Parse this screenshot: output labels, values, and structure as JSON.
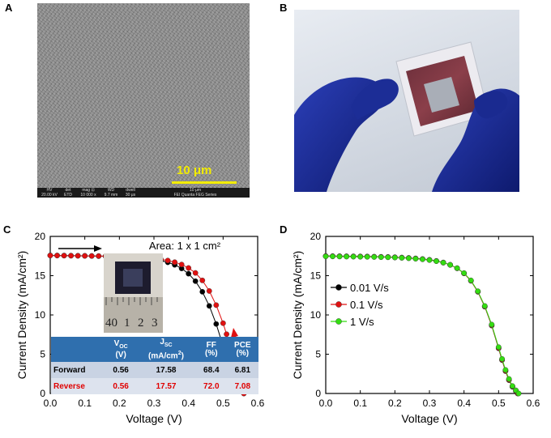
{
  "panels": {
    "a": {
      "letter": "A",
      "scale_bar": "10 μm",
      "info_bar": [
        {
          "key": "HV",
          "val": "20.00 kV"
        },
        {
          "key": "det",
          "val": "ETD"
        },
        {
          "key": "mag ⊡",
          "val": "10 000 x"
        },
        {
          "key": "WD",
          "val": "9.7 mm"
        },
        {
          "key": "dwell",
          "val": "30 μs"
        },
        {
          "key": "10 μm",
          "val": "FEI Quanta FEG Series"
        }
      ]
    },
    "b": {
      "letter": "B"
    },
    "c": {
      "letter": "C",
      "area_text": "Area: 1 x 1 cm²",
      "inset_ruler": [
        "40",
        "1",
        "2",
        "3"
      ],
      "table": {
        "headers": [
          "",
          "VOC (V)",
          "JSC (mA/cm²)",
          "FF (%)",
          "PCE (%)"
        ],
        "rows": [
          {
            "label": "Forward",
            "voc": "0.56",
            "jsc": "17.58",
            "ff": "68.4",
            "pce": "6.81"
          },
          {
            "label": "Reverse",
            "voc": "0.56",
            "jsc": "17.57",
            "ff": "72.0",
            "pce": "7.08"
          }
        ]
      }
    },
    "d": {
      "letter": "D"
    }
  },
  "colors": {
    "forward": "#000000",
    "reverse": "#e01010",
    "green": "#33dd11",
    "arrow_red": "#e01010"
  },
  "chart_data": [
    {
      "type": "line",
      "panel": "C",
      "xlabel": "Voltage (V)",
      "ylabel": "Current Density (mA/cm²)",
      "xlim": [
        0.0,
        0.6
      ],
      "ylim": [
        0,
        20
      ],
      "xticks": [
        "0.0",
        "0.1",
        "0.2",
        "0.3",
        "0.4",
        "0.5",
        "0.6"
      ],
      "yticks": [
        "0",
        "5",
        "10",
        "15",
        "20"
      ],
      "series": [
        {
          "color": "#000000",
          "x": [
            0.0,
            0.02,
            0.04,
            0.06,
            0.08,
            0.1,
            0.12,
            0.14,
            0.16,
            0.18,
            0.2,
            0.22,
            0.24,
            0.26,
            0.28,
            0.3,
            0.32,
            0.34,
            0.36,
            0.38,
            0.4,
            0.42,
            0.44,
            0.46,
            0.48,
            0.5,
            0.51,
            0.52,
            0.53,
            0.54,
            0.55,
            0.56
          ],
          "y": [
            17.58,
            17.57,
            17.56,
            17.55,
            17.54,
            17.53,
            17.51,
            17.49,
            17.47,
            17.44,
            17.41,
            17.37,
            17.32,
            17.26,
            17.18,
            17.07,
            16.92,
            16.7,
            16.38,
            15.92,
            15.25,
            14.3,
            12.95,
            11.15,
            8.85,
            6.05,
            4.55,
            3.05,
            1.75,
            0.8,
            0.3,
            0.0
          ]
        },
        {
          "color": "#e01010",
          "x": [
            0.0,
            0.02,
            0.04,
            0.06,
            0.08,
            0.1,
            0.12,
            0.14,
            0.16,
            0.18,
            0.2,
            0.22,
            0.24,
            0.26,
            0.28,
            0.3,
            0.32,
            0.34,
            0.36,
            0.38,
            0.4,
            0.42,
            0.44,
            0.46,
            0.48,
            0.5,
            0.51,
            0.52,
            0.53,
            0.54,
            0.55,
            0.56
          ],
          "y": [
            17.57,
            17.56,
            17.55,
            17.54,
            17.53,
            17.52,
            17.51,
            17.5,
            17.48,
            17.46,
            17.44,
            17.41,
            17.37,
            17.33,
            17.27,
            17.19,
            17.08,
            16.93,
            16.72,
            16.42,
            15.98,
            15.35,
            14.4,
            13.05,
            11.25,
            8.95,
            7.55,
            5.95,
            4.25,
            2.55,
            1.1,
            0.0
          ]
        }
      ]
    },
    {
      "type": "line",
      "panel": "D",
      "xlabel": "Voltage (V)",
      "ylabel": "Current Density (mA/cm²)",
      "xlim": [
        0.0,
        0.6
      ],
      "ylim": [
        0,
        20
      ],
      "xticks": [
        "0.0",
        "0.1",
        "0.2",
        "0.3",
        "0.4",
        "0.5",
        "0.6"
      ],
      "yticks": [
        "0",
        "5",
        "10",
        "15",
        "20"
      ],
      "series": [
        {
          "name": "0.01 V/s",
          "color": "#000000",
          "x": [
            0.0,
            0.02,
            0.04,
            0.06,
            0.08,
            0.1,
            0.12,
            0.14,
            0.16,
            0.18,
            0.2,
            0.22,
            0.24,
            0.26,
            0.28,
            0.3,
            0.32,
            0.34,
            0.36,
            0.38,
            0.4,
            0.42,
            0.44,
            0.46,
            0.48,
            0.5,
            0.51,
            0.52,
            0.53,
            0.54,
            0.55,
            0.555
          ],
          "y": [
            17.5,
            17.49,
            17.48,
            17.47,
            17.46,
            17.45,
            17.44,
            17.42,
            17.4,
            17.38,
            17.35,
            17.31,
            17.26,
            17.2,
            17.12,
            17.02,
            16.88,
            16.68,
            16.38,
            15.95,
            15.3,
            14.35,
            12.95,
            11.05,
            8.65,
            5.75,
            4.25,
            2.85,
            1.7,
            0.85,
            0.3,
            0.0
          ]
        },
        {
          "name": "0.1 V/s",
          "color": "#e01010",
          "x": [
            0.0,
            0.02,
            0.04,
            0.06,
            0.08,
            0.1,
            0.12,
            0.14,
            0.16,
            0.18,
            0.2,
            0.22,
            0.24,
            0.26,
            0.28,
            0.3,
            0.32,
            0.34,
            0.36,
            0.38,
            0.4,
            0.42,
            0.44,
            0.46,
            0.48,
            0.5,
            0.51,
            0.52,
            0.53,
            0.54,
            0.55,
            0.556
          ],
          "y": [
            17.48,
            17.47,
            17.46,
            17.45,
            17.44,
            17.43,
            17.42,
            17.4,
            17.38,
            17.36,
            17.33,
            17.29,
            17.24,
            17.18,
            17.1,
            17.0,
            16.86,
            16.66,
            16.37,
            15.94,
            15.3,
            14.36,
            12.97,
            11.08,
            8.7,
            5.8,
            4.3,
            2.9,
            1.75,
            0.9,
            0.35,
            0.0
          ]
        },
        {
          "name": "1 V/s",
          "color": "#33dd11",
          "x": [
            0.0,
            0.02,
            0.04,
            0.06,
            0.08,
            0.1,
            0.12,
            0.14,
            0.16,
            0.18,
            0.2,
            0.22,
            0.24,
            0.26,
            0.28,
            0.3,
            0.32,
            0.34,
            0.36,
            0.38,
            0.4,
            0.42,
            0.44,
            0.46,
            0.48,
            0.5,
            0.51,
            0.52,
            0.53,
            0.54,
            0.55,
            0.558
          ],
          "y": [
            17.46,
            17.45,
            17.44,
            17.43,
            17.42,
            17.41,
            17.4,
            17.38,
            17.36,
            17.34,
            17.31,
            17.27,
            17.22,
            17.16,
            17.09,
            16.99,
            16.85,
            16.66,
            16.38,
            15.96,
            15.33,
            14.4,
            13.02,
            11.14,
            8.78,
            5.9,
            4.4,
            3.0,
            1.85,
            0.95,
            0.4,
            0.0
          ]
        }
      ]
    }
  ]
}
